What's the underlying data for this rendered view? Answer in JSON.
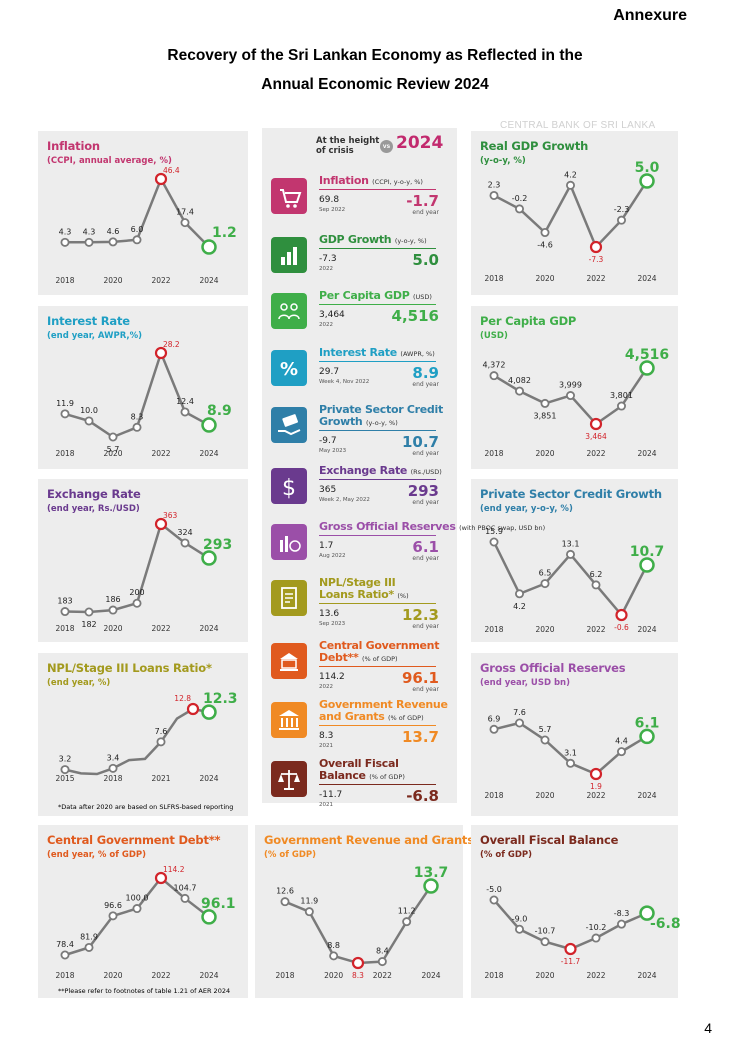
{
  "annexure": "Annexure",
  "title_line1": "Recovery of the Sri Lankan Economy as Reflected in the",
  "title_line2": "Annual Economic Review 2024",
  "watermark": "CENTRAL BANK OF SRI LANKA",
  "page_number": "4",
  "colors": {
    "red": "#d2232a",
    "green": "#3fae49",
    "grey_line": "#7a7a7a",
    "panel_bg": "#ededed"
  },
  "center": {
    "header_left": "At the height",
    "header_left2": "of crisis",
    "vs": "vs",
    "header_year": "2024",
    "rows": [
      {
        "title": "Inflation",
        "unit": "(CCPI, y-o-y, %)",
        "old": "69.8",
        "date": "Sep 2022",
        "new": "-1.7",
        "end": "end year",
        "color": "#c2366f",
        "icon": "cart-icon"
      },
      {
        "title": "GDP Growth",
        "unit": "(y-o-y, %)",
        "old": "-7.3",
        "date": "2022",
        "new": "5.0",
        "end": "",
        "color": "#2f8f3e",
        "icon": "bar-chart-icon"
      },
      {
        "title": "Per Capita GDP",
        "unit": "(USD)",
        "old": "3,464",
        "date": "2022",
        "new": "4,516",
        "end": "",
        "color": "#3fae49",
        "icon": "people-icon"
      },
      {
        "title": "Interest Rate",
        "unit": "(AWPR, %)",
        "old": "29.7",
        "date": "Week 4, Nov 2022",
        "new": "8.9",
        "end": "end year",
        "color": "#1f9fc4",
        "icon": "percent-icon"
      },
      {
        "title": "Private Sector Credit",
        "title2": "Growth",
        "unit": "(y-o-y, %)",
        "old": "-9.7",
        "date": "May 2023",
        "new": "10.7",
        "end": "end year",
        "color": "#2f7fa8",
        "icon": "credit-hand-icon"
      },
      {
        "title": "Exchange Rate",
        "unit": "(Rs./USD)",
        "old": "365",
        "date": "Week 2, May 2022",
        "new": "293",
        "end": "end year",
        "color": "#6a3a8e",
        "icon": "dollar-icon"
      },
      {
        "title": "Gross Official Reserves",
        "unit": "(with PBOC swap, USD bn)",
        "old": "1.7",
        "date": "Aug 2022",
        "new": "6.1",
        "end": "end year",
        "color": "#9b4fa8",
        "icon": "reserves-icon"
      },
      {
        "title": "NPL/Stage III",
        "title2": "Loans Ratio*",
        "unit": "(%)",
        "old": "13.6",
        "date": "Sep 2023",
        "new": "12.3",
        "end": "end year",
        "color": "#a39a1e",
        "icon": "document-icon"
      },
      {
        "title": "Central Government",
        "title2": "Debt**",
        "unit": "(% of GDP)",
        "old": "114.2",
        "date": "2022",
        "new": "96.1",
        "end": "end year",
        "color": "#e05a1e",
        "icon": "government-debt-icon"
      },
      {
        "title": "Government Revenue",
        "title2": "and Grants",
        "unit": "(% of GDP)",
        "old": "8.3",
        "date": "2021",
        "new": "13.7",
        "end": "",
        "color": "#f08a24",
        "icon": "bank-coins-icon"
      },
      {
        "title": "Overall Fiscal",
        "title2": "Balance",
        "unit": "(% of GDP)",
        "old": "-11.7",
        "date": "2021",
        "new": "-6.8",
        "end": "",
        "color": "#7b2a1e",
        "icon": "scale-icon"
      }
    ]
  },
  "chart_data": [
    {
      "id": "inflation",
      "type": "line",
      "title": "Inflation",
      "subtitle": "(CCPI, annual average, %)",
      "color": "#c2366f",
      "x": [
        2018,
        2019,
        2020,
        2021,
        2022,
        2023,
        2024
      ],
      "values": [
        4.3,
        4.3,
        4.6,
        6.0,
        46.4,
        17.4,
        1.2
      ],
      "labels": [
        "4.3",
        "4.3",
        "4.6",
        "6.0",
        "46.4",
        "17.4",
        "1.2"
      ],
      "ticks": [
        "2018",
        "2020",
        "2022",
        "2024"
      ]
    },
    {
      "id": "gdp",
      "type": "line",
      "title": "Real GDP Growth",
      "subtitle": "(y-o-y, %)",
      "color": "#2f8f3e",
      "x": [
        2018,
        2019,
        2020,
        2021,
        2022,
        2023,
        2024
      ],
      "values": [
        2.3,
        -0.2,
        -4.6,
        4.2,
        -7.3,
        -2.3,
        5.0
      ],
      "labels": [
        "2.3",
        "-0.2",
        "-4.6",
        "4.2",
        "-7.3",
        "-2.3",
        "5.0"
      ],
      "ticks": [
        "2018",
        "2020",
        "2022",
        "2024"
      ]
    },
    {
      "id": "interest",
      "type": "line",
      "title": "Interest Rate",
      "subtitle": "(end year, AWPR,%)",
      "color": "#1f9fc4",
      "x": [
        2018,
        2019,
        2020,
        2021,
        2022,
        2023,
        2024
      ],
      "values": [
        11.9,
        10.0,
        5.7,
        8.3,
        28.2,
        12.4,
        8.9
      ],
      "labels": [
        "11.9",
        "10.0",
        "5.7",
        "8.3",
        "28.2",
        "12.4",
        "8.9"
      ],
      "ticks": [
        "2018",
        "2020",
        "2022",
        "2024"
      ]
    },
    {
      "id": "percapita",
      "type": "line",
      "title": "Per Capita GDP",
      "subtitle": "(USD)",
      "color": "#3fae49",
      "x": [
        2018,
        2019,
        2020,
        2021,
        2022,
        2023,
        2024
      ],
      "values": [
        4372,
        4082,
        3851,
        3999,
        3464,
        3801,
        4516
      ],
      "labels": [
        "4,372",
        "4,082",
        "3,851",
        "3,999",
        "3,464",
        "3,801",
        "4,516"
      ],
      "ticks": [
        "2018",
        "2020",
        "2022",
        "2024"
      ]
    },
    {
      "id": "exchange",
      "type": "line",
      "title": "Exchange Rate",
      "subtitle": "(end year, Rs./USD)",
      "color": "#6a3a8e",
      "x": [
        2018,
        2019,
        2020,
        2021,
        2022,
        2023,
        2024
      ],
      "values": [
        183,
        182,
        186,
        200,
        363,
        324,
        293
      ],
      "labels": [
        "183",
        "182",
        "186",
        "200",
        "363",
        "324",
        "293"
      ],
      "ticks": [
        "2018",
        "2020",
        "2022",
        "2024"
      ]
    },
    {
      "id": "credit",
      "type": "line",
      "title": "Private Sector Credit Growth",
      "subtitle": "(end year, y-o-y, %)",
      "color": "#2f7fa8",
      "x": [
        2018,
        2019,
        2020,
        2021,
        2022,
        2023,
        2024
      ],
      "values": [
        15.9,
        4.2,
        6.5,
        13.1,
        6.2,
        -0.6,
        10.7
      ],
      "labels": [
        "15.9",
        "4.2",
        "6.5",
        "13.1",
        "6.2",
        "-0.6",
        "10.7"
      ],
      "ticks": [
        "2018",
        "2020",
        "2022",
        "2024"
      ]
    },
    {
      "id": "npl",
      "type": "line",
      "title": "NPL/Stage III Loans Ratio*",
      "subtitle": "(end year, %)",
      "color": "#a39a1e",
      "x": [
        2015,
        2016,
        2017,
        2018,
        2019,
        2020,
        2021,
        2022,
        2023,
        2024
      ],
      "values": [
        3.2,
        2.6,
        2.5,
        3.4,
        4.7,
        4.9,
        7.6,
        11.3,
        12.8,
        12.3
      ],
      "labels": [
        "3.2",
        "",
        "",
        "3.4",
        "",
        "",
        "7.6",
        "",
        "12.8",
        "12.3"
      ],
      "ticks": [
        "2015",
        "2018",
        "2021",
        "2024"
      ],
      "footnote": "*Data after 2020 are based on SLFRS-based reporting"
    },
    {
      "id": "reserves",
      "type": "line",
      "title": "Gross Official Reserves",
      "subtitle": "(end year, USD bn)",
      "color": "#9b4fa8",
      "x": [
        2018,
        2019,
        2020,
        2021,
        2022,
        2023,
        2024
      ],
      "values": [
        6.9,
        7.6,
        5.7,
        3.1,
        1.9,
        4.4,
        6.1
      ],
      "labels": [
        "6.9",
        "7.6",
        "5.7",
        "3.1",
        "1.9",
        "4.4",
        "6.1"
      ],
      "ticks": [
        "2018",
        "2020",
        "2022",
        "2024"
      ]
    },
    {
      "id": "debt",
      "type": "line",
      "title": "Central Government Debt**",
      "subtitle": "(end year, % of GDP)",
      "color": "#e05a1e",
      "x": [
        2018,
        2019,
        2020,
        2021,
        2022,
        2023,
        2024
      ],
      "values": [
        78.4,
        81.9,
        96.6,
        100.0,
        114.2,
        104.7,
        96.1
      ],
      "labels": [
        "78.4",
        "81.9",
        "96.6",
        "100.0",
        "114.2",
        "104.7",
        "96.1"
      ],
      "ticks": [
        "2018",
        "2020",
        "2022",
        "2024"
      ],
      "footnote": "**Please refer to footnotes of table 1.21 of AER 2024"
    },
    {
      "id": "revenue",
      "type": "line",
      "title": "Government Revenue and Grants",
      "subtitle": "(% of GDP)",
      "color": "#f08a24",
      "x": [
        2018,
        2019,
        2020,
        2021,
        2022,
        2023,
        2024
      ],
      "values": [
        12.6,
        11.9,
        8.8,
        8.3,
        8.4,
        11.2,
        13.7
      ],
      "labels": [
        "12.6",
        "11.9",
        "8.8",
        "8.3",
        "8.4",
        "11.2",
        "13.7"
      ],
      "ticks": [
        "2018",
        "2020",
        "2022",
        "2024"
      ]
    },
    {
      "id": "fiscal",
      "type": "line",
      "title": "Overall Fiscal Balance",
      "subtitle": "(% of GDP)",
      "color": "#7b2a1e",
      "x": [
        2018,
        2019,
        2020,
        2021,
        2022,
        2023,
        2024
      ],
      "values": [
        -5.0,
        -9.0,
        -10.7,
        -11.7,
        -10.2,
        -8.3,
        -6.8
      ],
      "labels": [
        "-5.0",
        "-9.0",
        "-10.7",
        "-11.7",
        "-10.2",
        "-8.3",
        "-6.8"
      ],
      "ticks": [
        "2018",
        "2020",
        "2022",
        "2024"
      ]
    }
  ]
}
